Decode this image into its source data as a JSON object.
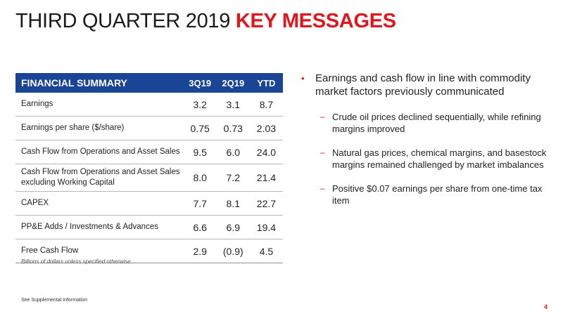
{
  "slide": {
    "title_main": "THIRD QUARTER 2019",
    "title_accent": "KEY MESSAGES",
    "accent_color": "#e2161d",
    "table_header_color": "#1a4597",
    "page_number": "4",
    "supplemental_note": "See Supplemental Information"
  },
  "table": {
    "header": [
      "FINANCIAL SUMMARY",
      "3Q19",
      "2Q19",
      "YTD"
    ],
    "rows": [
      {
        "label": "Earnings",
        "values": [
          "3.2",
          "3.1",
          "8.7"
        ]
      },
      {
        "label": "Earnings per share ($/share)",
        "values": [
          "0.75",
          "0.73",
          "2.03"
        ]
      },
      {
        "label": "Cash Flow from Operations and Asset Sales",
        "values": [
          "9.5",
          "6.0",
          "24.0"
        ]
      },
      {
        "label": "Cash Flow from Operations and Asset Sales excluding Working Capital",
        "values": [
          "8.0",
          "7.2",
          "21.4"
        ]
      },
      {
        "label": "CAPEX",
        "values": [
          "7.7",
          "8.1",
          "22.7"
        ]
      },
      {
        "label": "PP&E Adds / Investments & Advances",
        "values": [
          "6.6",
          "6.9",
          "19.4"
        ]
      },
      {
        "label": "Free Cash Flow",
        "values": [
          "2.9",
          "(0.9)",
          "4.5"
        ]
      }
    ],
    "footnote": "Billions of dollars unless specified otherwise"
  },
  "messages": {
    "main": "Earnings and cash flow in line with commodity market factors previously communicated",
    "subs": [
      "Crude oil prices declined sequentially, while refining margins improved",
      "Natural gas prices, chemical margins, and basestock margins remained challenged by market imbalances",
      "Positive $0.07 earnings per share from one-time tax item"
    ],
    "bullet_glyph": "•",
    "dash_glyph": "–"
  }
}
